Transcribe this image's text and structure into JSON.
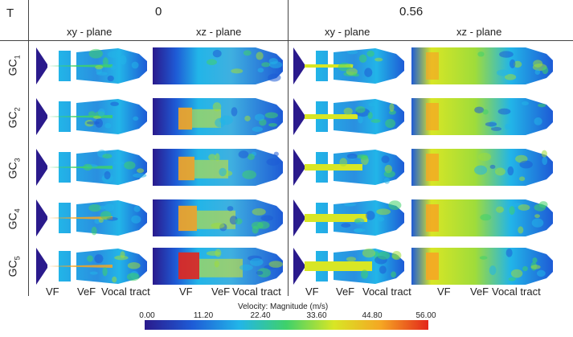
{
  "header": {
    "t_label": "T",
    "times": [
      "0",
      "0.56"
    ],
    "planes": [
      "xy - plane",
      "xz - plane",
      "xy - plane",
      "xz - plane"
    ]
  },
  "rows": [
    {
      "prefix": "GC",
      "index": "1"
    },
    {
      "prefix": "GC",
      "index": "2"
    },
    {
      "prefix": "GC",
      "index": "3"
    },
    {
      "prefix": "GC",
      "index": "4"
    },
    {
      "prefix": "GC",
      "index": "5"
    }
  ],
  "bottom_labels": {
    "vf": "VF",
    "vef": "VeF",
    "vocal_tract": "Vocal tract"
  },
  "colorbar": {
    "title": "Velocity: Magnitude (m/s)",
    "ticks": [
      "0.00",
      "11.20",
      "22.40",
      "33.60",
      "44.80",
      "56.00"
    ],
    "colors": [
      "#2a1a8c",
      "#1e5bd6",
      "#22b5e8",
      "#3fd16a",
      "#d8e625",
      "#f5a623",
      "#e3261b"
    ]
  }
}
